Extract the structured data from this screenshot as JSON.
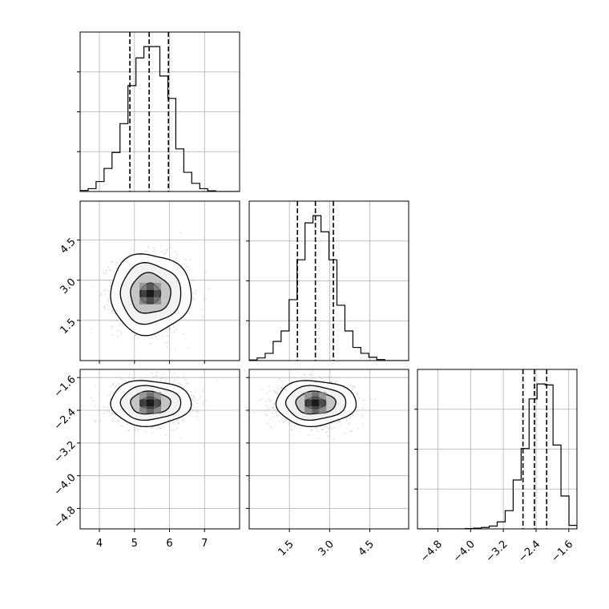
{
  "chart_data": {
    "type": "corner",
    "grid": true,
    "colors": {
      "line": "#000000",
      "grid": "#b0b0b0",
      "sample": "#bdbdbd",
      "density": "#000000"
    },
    "params": [
      {
        "range": [
          3.45,
          8.0
        ],
        "ticks": [
          "4",
          "5",
          "6",
          "7"
        ],
        "tick_values": [
          4,
          5,
          6,
          7
        ],
        "quantiles": [
          4.87,
          5.42,
          5.97
        ]
      },
      {
        "range": [
          0.0,
          5.95
        ],
        "ticks": [
          "1.5",
          "3.0",
          "4.5"
        ],
        "tick_values": [
          1.5,
          3.0,
          4.5
        ],
        "quantiles": [
          1.8,
          2.47,
          3.14
        ]
      },
      {
        "range": [
          -5.3,
          -1.4
        ],
        "ticks": [
          "−4.8",
          "−4.0",
          "−3.2",
          "−2.4",
          "−1.6"
        ],
        "tick_values": [
          -4.8,
          -4.0,
          -3.2,
          -2.4,
          -1.6
        ],
        "quantiles": [
          -2.72,
          -2.44,
          -2.14
        ]
      }
    ],
    "histograms": [
      {
        "param": 0,
        "edges": [
          3.45,
          3.678,
          3.905,
          4.133,
          4.36,
          4.588,
          4.815,
          5.043,
          5.27,
          5.498,
          5.725,
          5.953,
          6.18,
          6.408,
          6.635,
          6.863,
          7.09,
          7.318,
          7.545,
          7.773,
          8.0
        ],
        "counts": [
          3,
          8,
          28,
          65,
          110,
          191,
          298,
          376,
          408,
          408,
          325,
          262,
          120,
          54,
          23,
          8,
          2,
          0,
          0,
          0
        ]
      },
      {
        "param": 1,
        "edges": [
          0.0,
          0.298,
          0.595,
          0.893,
          1.19,
          1.488,
          1.785,
          2.083,
          2.38,
          2.678,
          2.975,
          3.273,
          3.57,
          3.868,
          4.165,
          4.463,
          4.76,
          5.058,
          5.355,
          5.653,
          5.95
        ],
        "counts": [
          2,
          8,
          22,
          58,
          90,
          185,
          306,
          418,
          440,
          391,
          306,
          168,
          90,
          40,
          22,
          10,
          3,
          0,
          0,
          0
        ]
      },
      {
        "param": 2,
        "edges": [
          -5.3,
          -5.105,
          -4.91,
          -4.715,
          -4.52,
          -4.325,
          -4.13,
          -3.935,
          -3.74,
          -3.545,
          -3.35,
          -3.155,
          -2.96,
          -2.765,
          -2.57,
          -2.375,
          -2.18,
          -1.985,
          -1.79,
          -1.595,
          -1.4
        ],
        "counts": [
          0,
          0,
          0,
          0,
          0,
          0,
          1,
          2,
          4,
          8,
          20,
          52,
          140,
          230,
          372,
          415,
          412,
          240,
          94,
          10
        ]
      }
    ],
    "pairs": [
      {
        "x_param": 0,
        "y_param": 1,
        "center": [
          5.45,
          2.5
        ],
        "sigma": [
          0.5,
          0.65
        ],
        "rho": -0.05,
        "contours": [
          0.5,
          1.0,
          1.5,
          2.0
        ]
      },
      {
        "x_param": 0,
        "y_param": 2,
        "center": [
          5.45,
          -2.22
        ],
        "sigma": [
          0.5,
          0.24
        ],
        "rho": 0.0,
        "contours": [
          0.5,
          1.0,
          1.5,
          2.0
        ]
      },
      {
        "x_param": 1,
        "y_param": 2,
        "center": [
          2.47,
          -2.22
        ],
        "sigma": [
          0.65,
          0.24
        ],
        "rho": 0.0,
        "contours": [
          0.5,
          1.0,
          1.5,
          2.0
        ]
      }
    ]
  }
}
